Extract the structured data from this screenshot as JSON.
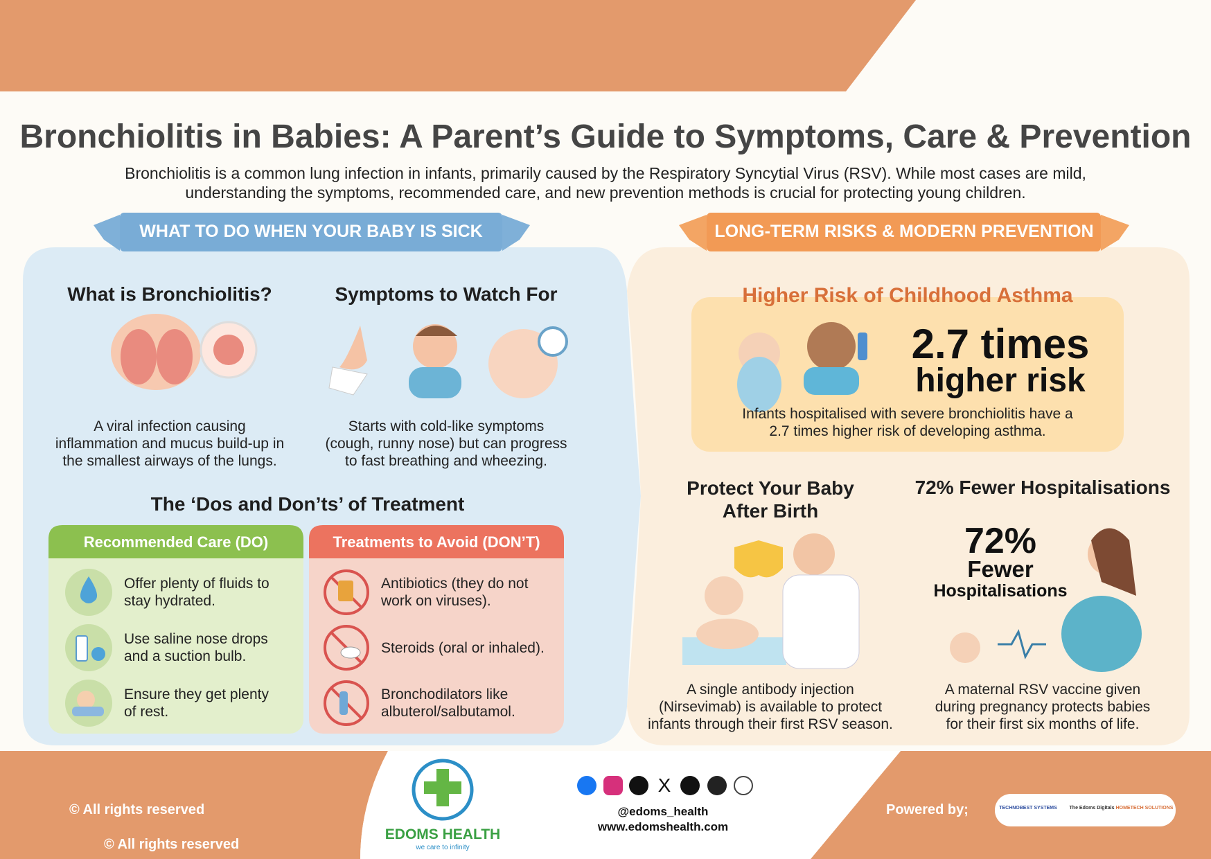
{
  "header": {
    "title": "Bronchiolitis in Babies: A Parent’s Guide to Symptoms, Care & Prevention",
    "intro": [
      "Bronchiolitis is a common lung infection in infants, primarily caused by the Respiratory Syncytial Virus (RSV). While most cases are mild,",
      "understanding the symptoms, recommended care, and new prevention methods is crucial for protecting young children."
    ]
  },
  "left": {
    "banner": "WHAT TO DO WHEN YOUR BABY IS SICK",
    "what_is": {
      "heading": "What is Bronchiolitis?",
      "body": [
        "A viral infection causing",
        "inflammation and mucus build-up in",
        "the smallest airways of the lungs."
      ]
    },
    "symptoms": {
      "heading": "Symptoms to Watch For",
      "body": [
        "Starts with cold-like symptoms",
        "(cough, runny nose) but can progress",
        "to fast breathing and wheezing."
      ]
    },
    "treatment_heading": "The ‘Dos and Don’ts’ of Treatment",
    "do": {
      "header": "Recommended Care (DO)",
      "items": [
        [
          "Offer plenty of fluids to",
          "stay hydrated."
        ],
        [
          "Use saline nose drops",
          "and a suction bulb."
        ],
        [
          "Ensure they get plenty",
          "of rest."
        ]
      ]
    },
    "dont": {
      "header": "Treatments to Avoid (DON’T)",
      "items": [
        [
          "Antibiotics (they do not",
          "work on viruses)."
        ],
        [
          "Steroids (oral or inhaled)."
        ],
        [
          "Bronchodilators like",
          "albuterol/salbutamol."
        ]
      ]
    }
  },
  "right": {
    "banner": "LONG-TERM RISKS & MODERN PREVENTION",
    "asthma": {
      "heading": "Higher Risk of Childhood Asthma",
      "stat": "2.7 times",
      "stat_sub": "higher risk",
      "body": [
        "Infants hospitalised with severe bronchiolitis have a",
        "2.7 times higher risk of developing asthma."
      ]
    },
    "protect": {
      "heading": [
        "Protect Your Baby",
        "After Birth"
      ],
      "body": [
        "A single antibody injection",
        "(Nirsevimab) is available to protect",
        "infants through their first RSV season."
      ]
    },
    "fewer": {
      "heading": "72% Fewer Hospitalisations",
      "stat": "72%",
      "stat_line2": "Fewer",
      "stat_line3": "Hospitalisations",
      "body": [
        "A maternal RSV vaccine given",
        "during pregnancy protects babies",
        "for their first six months of life."
      ]
    }
  },
  "footer": {
    "rights": [
      "© All rights reserved",
      "© All rights reserved"
    ],
    "brand": "EDOMS HEALTH",
    "tagline": "we care to infinity",
    "handle": "@edoms_health",
    "website": "www.edomshealth.com",
    "powered": "Powered by;",
    "partners": [
      "TECHNOBEST SYSTEMS",
      "The Edoms Digitals",
      "HOMETECH SOLUTIONS"
    ]
  }
}
